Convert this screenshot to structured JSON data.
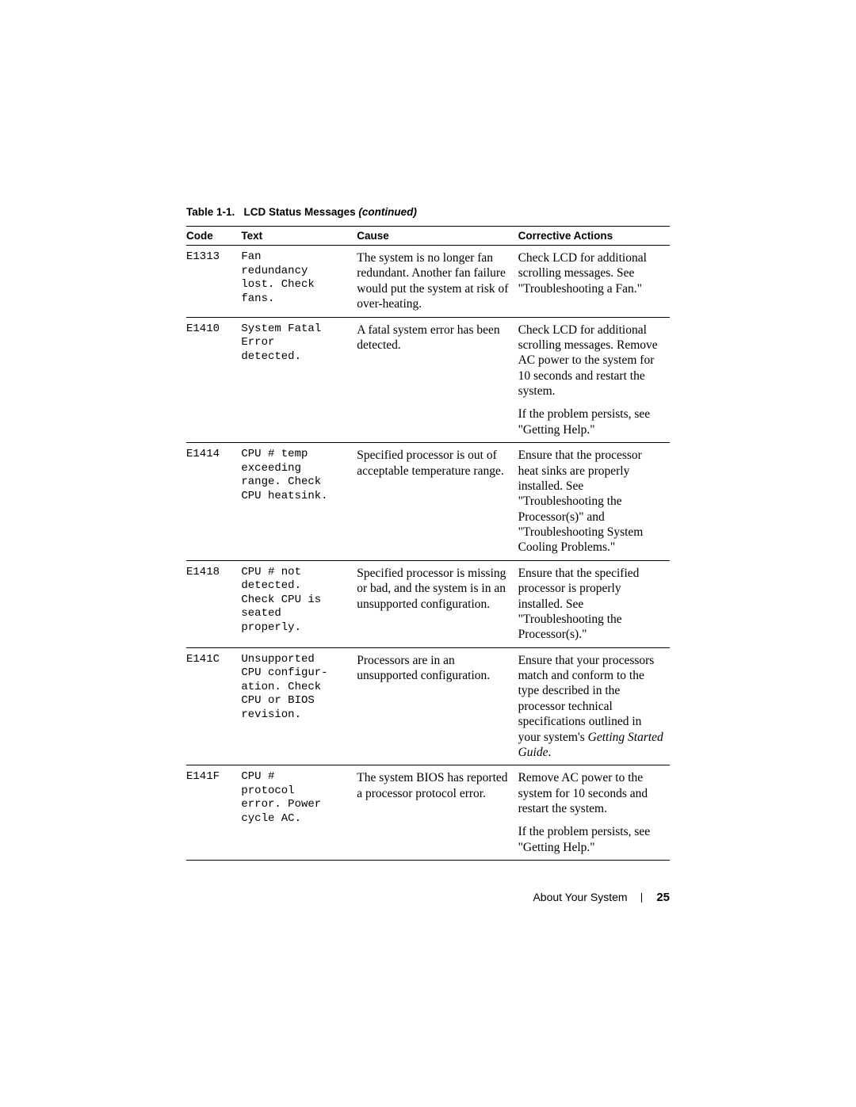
{
  "table_title_prefix": "Table 1-1.",
  "table_title_main": "LCD Status Messages",
  "table_title_suffix": "(continued)",
  "headers": {
    "code": "Code",
    "text": "Text",
    "cause": "Cause",
    "corrective": "Corrective Actions"
  },
  "rows": [
    {
      "code": "E1313",
      "text": "Fan\nredundancy\nlost. Check\nfans.",
      "cause": "The system is no longer fan redundant. Another fan failure would put the system at risk of over-heating.",
      "corrective": [
        "Check LCD for additional scrolling messages. See \"Troubleshooting a Fan.\""
      ]
    },
    {
      "code": "E1410",
      "text": "System Fatal\nError\ndetected.",
      "cause": "A fatal system error has been detected.",
      "corrective": [
        "Check LCD for additional scrolling messages. Remove AC power to the system for 10 seconds and restart the system.",
        "If the problem persists, see \"Getting Help.\""
      ]
    },
    {
      "code": "E1414",
      "text": "CPU # temp\nexceeding\nrange. Check\nCPU heatsink.",
      "cause": "Specified processor is out of acceptable temperature range.",
      "corrective": [
        "Ensure that the processor heat sinks are properly installed. See \"Troubleshooting the Processor(s)\" and \"Troubleshooting System Cooling Problems.\""
      ]
    },
    {
      "code": "E1418",
      "text": "CPU # not\ndetected.\nCheck CPU is\nseated\nproperly.",
      "cause": "Specified processor is missing or bad, and the system is in an unsupported configuration.",
      "corrective": [
        "Ensure that the specified processor is properly installed. See \"Troubleshooting the Processor(s).\""
      ]
    },
    {
      "code": "E141C",
      "text": "Unsupported\nCPU configur-\nation. Check\nCPU or BIOS\nrevision.",
      "cause": "Processors are in an unsupported configuration.",
      "corrective_html": "Ensure that your processors match and conform to the type described in the processor technical specifications outlined in your system's <em>Getting Started Guide</em>."
    },
    {
      "code": "E141F",
      "text": "CPU #\nprotocol\nerror. Power\ncycle AC.",
      "cause": "The system BIOS has reported a processor protocol error.",
      "corrective": [
        "Remove AC power to the system for 10 seconds and restart the system.",
        "If the problem persists, see \"Getting Help.\""
      ]
    }
  ],
  "footer": {
    "section": "About Your System",
    "page": "25"
  }
}
